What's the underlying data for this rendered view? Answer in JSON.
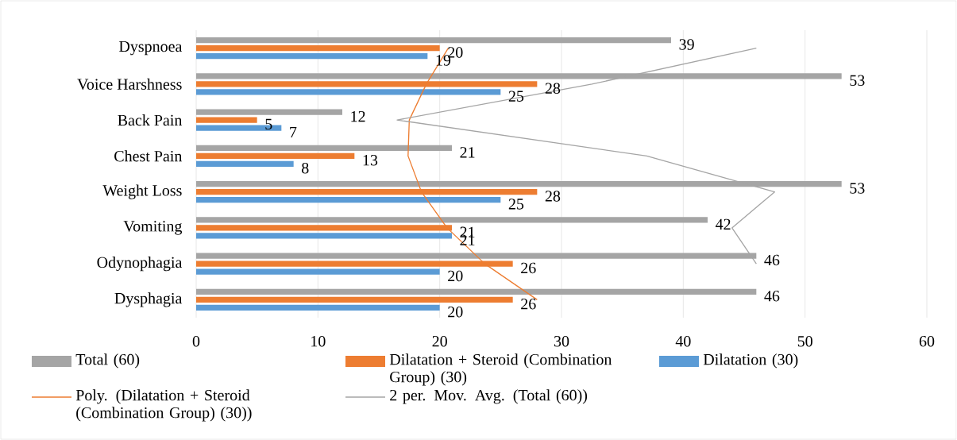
{
  "chart_data": {
    "type": "bar",
    "orientation": "horizontal",
    "categories": [
      "Dyspnoea",
      "Voice Harshness",
      "Back Pain",
      "Chest Pain",
      "Weight Loss",
      "Vomiting",
      "Odynophagia",
      "Dysphagia"
    ],
    "xlim": [
      0,
      60
    ],
    "xticks": [
      0,
      10,
      20,
      30,
      40,
      50,
      60
    ],
    "grid": "x",
    "legend": "bottom",
    "series": [
      {
        "name": "Total (60)",
        "color": "#a5a5a5",
        "values": [
          39,
          53,
          12,
          21,
          53,
          42,
          46,
          46
        ],
        "value_labels": [
          "39",
          "53",
          "12",
          "21",
          "53",
          "42",
          "46",
          "46"
        ]
      },
      {
        "name": "Dilatation + Steroid (Combination Group) (30)",
        "color": "#ed7d31",
        "values": [
          20,
          28,
          5,
          13,
          28,
          21,
          26,
          26
        ],
        "value_labels": [
          "20",
          "28",
          "5",
          "13",
          "28",
          "21",
          "26",
          "26"
        ]
      },
      {
        "name": "Dilatation (30)",
        "color": "#5b9bd5",
        "values": [
          19,
          25,
          7,
          8,
          25,
          21,
          20,
          20
        ],
        "value_labels": [
          "19",
          "25",
          "7",
          "8",
          "25",
          "21",
          "20",
          "20"
        ]
      },
      {
        "type": "line",
        "name": "Poly. (Dilatation + Steroid (Combination Group) (30))",
        "color": "#ed7d31",
        "values": [
          20.7,
          18.9,
          17.5,
          17.4,
          18.5,
          20.6,
          23.7,
          28
        ]
      },
      {
        "type": "line",
        "name": "2 per. Mov. Avg. (Total (60))",
        "color": "#a5a5a5",
        "values": [
          46,
          32.5,
          16.5,
          37,
          47.5,
          44,
          46,
          null
        ]
      }
    ]
  }
}
